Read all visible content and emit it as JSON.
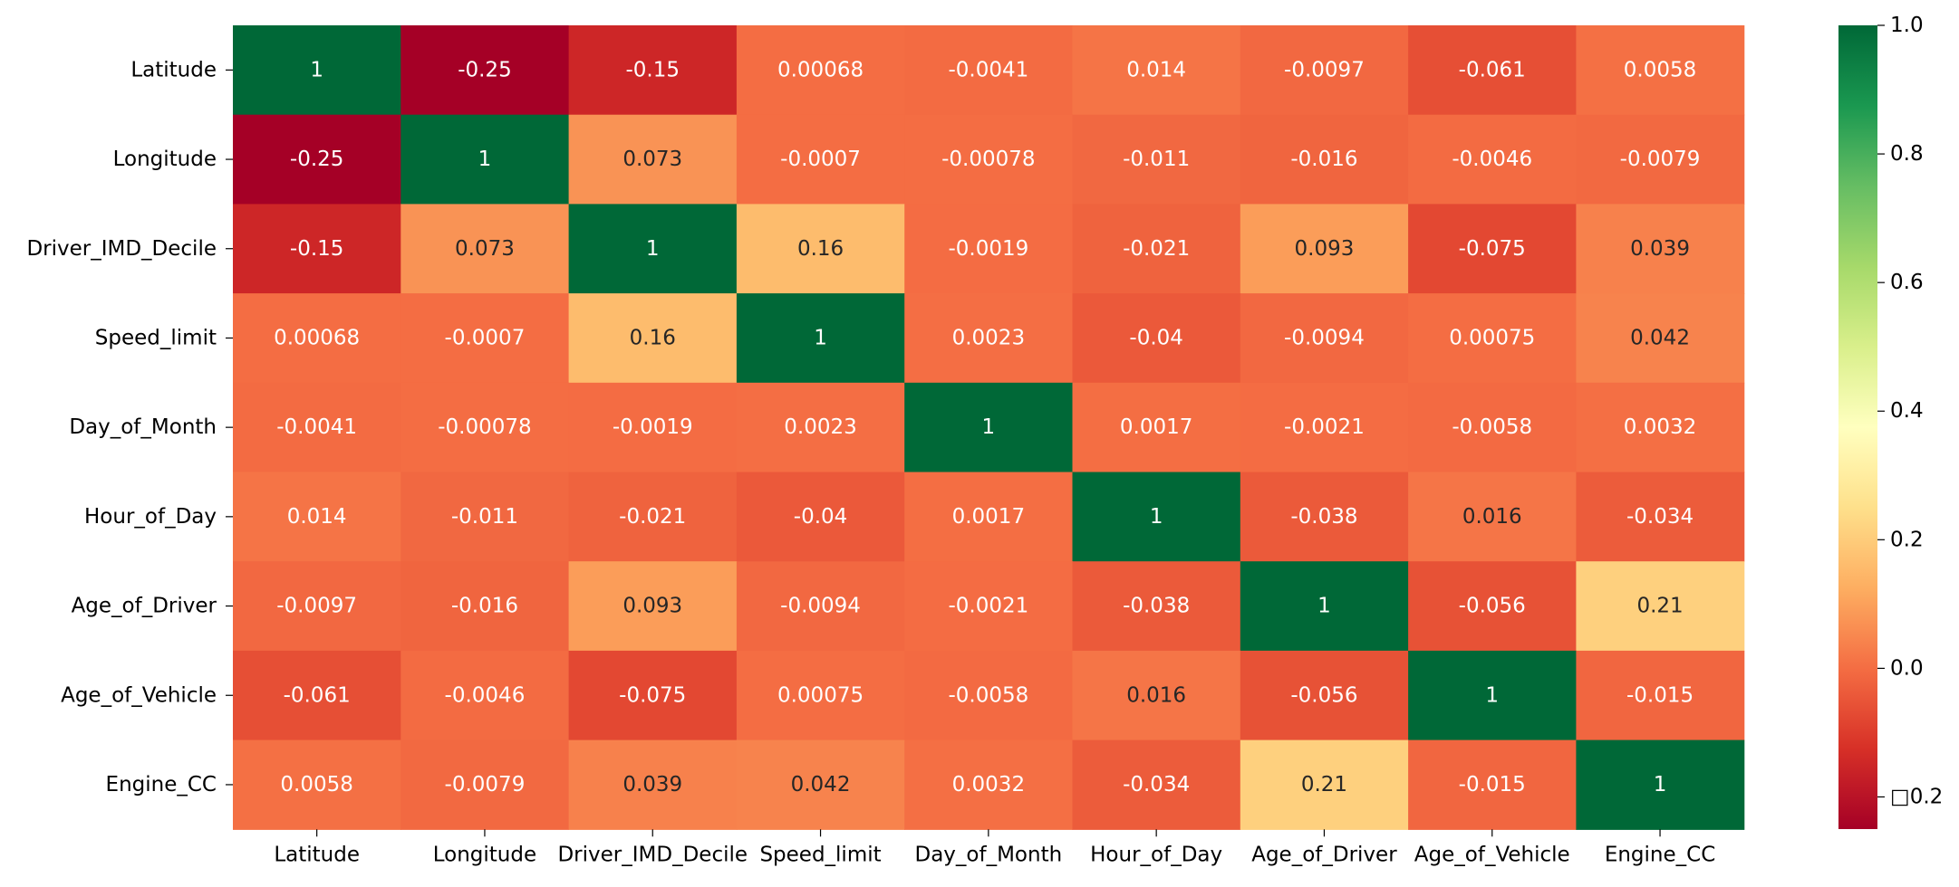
{
  "chart_data": {
    "type": "heatmap",
    "title": "",
    "xlabel": "",
    "ylabel": "",
    "x_categories": [
      "Latitude",
      "Longitude",
      "Driver_IMD_Decile",
      "Speed_limit",
      "Day_of_Month",
      "Hour_of_Day",
      "Age_of_Driver",
      "Age_of_Vehicle",
      "Engine_CC"
    ],
    "y_categories": [
      "Latitude",
      "Longitude",
      "Driver_IMD_Decile",
      "Speed_limit",
      "Day_of_Month",
      "Hour_of_Day",
      "Age_of_Driver",
      "Age_of_Vehicle",
      "Engine_CC"
    ],
    "values": [
      [
        1,
        -0.25,
        -0.15,
        0.00068,
        -0.0041,
        0.014,
        -0.0097,
        -0.061,
        0.0058
      ],
      [
        -0.25,
        1,
        0.073,
        -0.0007,
        -0.00078,
        -0.011,
        -0.016,
        -0.0046,
        -0.0079
      ],
      [
        -0.15,
        0.073,
        1,
        0.16,
        -0.0019,
        -0.021,
        0.093,
        -0.075,
        0.039
      ],
      [
        0.00068,
        -0.0007,
        0.16,
        1,
        0.0023,
        -0.04,
        -0.0094,
        0.00075,
        0.042
      ],
      [
        -0.0041,
        -0.00078,
        -0.0019,
        0.0023,
        1,
        0.0017,
        -0.0021,
        -0.0058,
        0.0032
      ],
      [
        0.014,
        -0.011,
        -0.021,
        -0.04,
        0.0017,
        1,
        -0.038,
        0.016,
        -0.034
      ],
      [
        -0.0097,
        -0.016,
        0.093,
        -0.0094,
        -0.0021,
        -0.038,
        1,
        -0.056,
        0.21
      ],
      [
        -0.061,
        -0.0046,
        -0.075,
        0.00075,
        -0.0058,
        0.016,
        -0.056,
        1,
        -0.015
      ],
      [
        0.0058,
        -0.0079,
        0.039,
        0.042,
        0.0032,
        -0.034,
        0.21,
        -0.015,
        1
      ]
    ],
    "cell_labels": [
      [
        "1",
        "-0.25",
        "-0.15",
        "0.00068",
        "-0.0041",
        "0.014",
        "-0.0097",
        "-0.061",
        "0.0058"
      ],
      [
        "-0.25",
        "1",
        "0.073",
        "-0.0007",
        "-0.00078",
        "-0.011",
        "-0.016",
        "-0.0046",
        "-0.0079"
      ],
      [
        "-0.15",
        "0.073",
        "1",
        "0.16",
        "-0.0019",
        "-0.021",
        "0.093",
        "-0.075",
        "0.039"
      ],
      [
        "0.00068",
        "-0.0007",
        "0.16",
        "1",
        "0.0023",
        "-0.04",
        "-0.0094",
        "0.00075",
        "0.042"
      ],
      [
        "-0.0041",
        "-0.00078",
        "-0.0019",
        "0.0023",
        "1",
        "0.0017",
        "-0.0021",
        "-0.0058",
        "0.0032"
      ],
      [
        "0.014",
        "-0.011",
        "-0.021",
        "-0.04",
        "0.0017",
        "1",
        "-0.038",
        "0.016",
        "-0.034"
      ],
      [
        "-0.0097",
        "-0.016",
        "0.093",
        "-0.0094",
        "-0.0021",
        "-0.038",
        "1",
        "-0.056",
        "0.21"
      ],
      [
        "-0.061",
        "-0.0046",
        "-0.075",
        "0.00075",
        "-0.0058",
        "0.016",
        "-0.056",
        "1",
        "-0.015"
      ],
      [
        "0.0058",
        "-0.0079",
        "0.039",
        "0.042",
        "0.0032",
        "-0.034",
        "0.21",
        "-0.015",
        "1"
      ]
    ],
    "colormap": "RdYlGn",
    "vmin": -0.25,
    "vmax": 1.0,
    "colorbar": {
      "position": "right",
      "ticks": [
        -0.2,
        0.0,
        0.2,
        0.4,
        0.6,
        0.8,
        1.0
      ],
      "tick_labels": [
        "□0.2",
        "0.0",
        "0.2",
        "0.4",
        "0.6",
        "0.8",
        "1.0"
      ]
    },
    "grid": false,
    "annotated": true
  }
}
